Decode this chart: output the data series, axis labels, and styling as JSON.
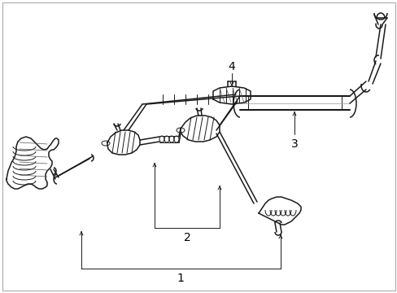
{
  "background_color": "#ffffff",
  "line_color": "#1a1a1a",
  "label_color": "#000000",
  "figure_width": 4.89,
  "figure_height": 3.6,
  "dpi": 100,
  "label_fontsize": 10,
  "border_color": "#aaaaaa",
  "border_linewidth": 0.8,
  "lw_thin": 0.7,
  "lw_med": 1.1,
  "lw_thick": 1.5
}
